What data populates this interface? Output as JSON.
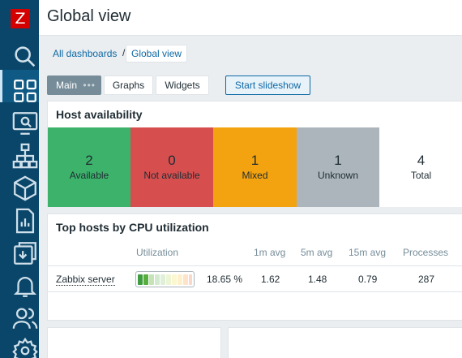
{
  "app": {
    "logo_letter": "Z",
    "page_title": "Global view"
  },
  "sidebar": {
    "items": [
      {
        "icon": "search-icon"
      },
      {
        "icon": "dashboard-icon",
        "active": true
      },
      {
        "icon": "monitoring-icon"
      },
      {
        "icon": "network-icon"
      },
      {
        "icon": "inventory-box-icon"
      },
      {
        "icon": "reports-icon"
      },
      {
        "icon": "data-collection-icon"
      },
      {
        "icon": "alerts-bell-icon"
      },
      {
        "icon": "users-icon"
      },
      {
        "icon": "administration-gear-icon"
      }
    ]
  },
  "breadcrumb": {
    "parent": "All dashboards",
    "separator": "/",
    "current": "Global view"
  },
  "tabs": [
    {
      "label": "Main",
      "active": true
    },
    {
      "label": "Graphs"
    },
    {
      "label": "Widgets"
    }
  ],
  "slideshow_label": "Start slideshow",
  "host_availability": {
    "title": "Host availability",
    "cells": [
      {
        "count": "2",
        "label": "Available",
        "color": "#3db26b"
      },
      {
        "count": "0",
        "label": "Not available",
        "color": "#d64e4e"
      },
      {
        "count": "1",
        "label": "Mixed",
        "color": "#f3a30f"
      },
      {
        "count": "1",
        "label": "Unknown",
        "color": "#abb5bb"
      },
      {
        "count": "4",
        "label": "Total",
        "color": "#ffffff"
      }
    ]
  },
  "top_hosts": {
    "title": "Top hosts by CPU utilization",
    "columns": [
      "Utilization",
      "1m avg",
      "5m avg",
      "15m avg",
      "Processes"
    ],
    "rows": [
      {
        "host": "Zabbix server",
        "utilization": "18.65 %",
        "utilization_value": 18.65,
        "avg1": "1.62",
        "avg5": "1.48",
        "avg15": "0.79",
        "processes": "287"
      }
    ]
  }
}
